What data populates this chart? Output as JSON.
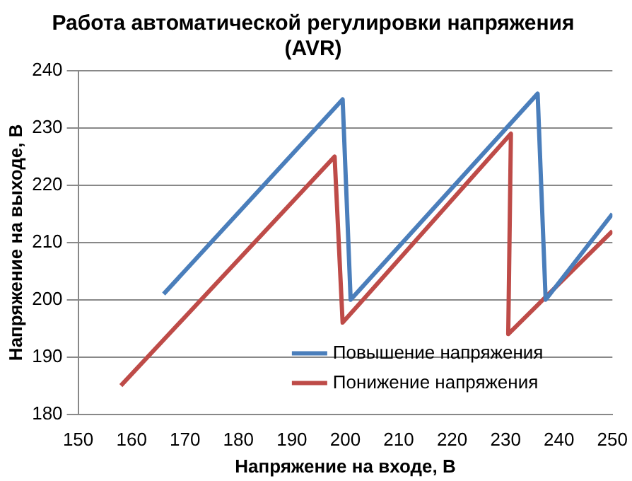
{
  "chart_data": {
    "type": "line",
    "title": "Работа автоматической регулировки напряжения (AVR)",
    "xlabel": "Напряжение на входе, В",
    "ylabel": "Напряжение на выходе, В",
    "series": [
      {
        "name": "Повышение напряжения",
        "color": "#4a7ebb",
        "x": [
          166,
          199.5,
          201,
          236,
          237.5,
          250
        ],
        "values": [
          201,
          235,
          200,
          236,
          200,
          215
        ]
      },
      {
        "name": "Понижение напряжения",
        "color": "#be4b48",
        "x": [
          158,
          198,
          199.5,
          231,
          230.5,
          237,
          250
        ],
        "values": [
          185,
          225,
          196,
          229,
          194,
          200,
          212
        ]
      }
    ],
    "xlim": [
      150,
      250
    ],
    "xticks": [
      150,
      160,
      170,
      180,
      190,
      200,
      210,
      220,
      230,
      240,
      250
    ],
    "ylim": [
      180,
      240
    ],
    "yticks": [
      180,
      190,
      200,
      210,
      220,
      230,
      240
    ],
    "grid": "y",
    "legend": "bottom",
    "marker": "none",
    "line_style": "solid"
  }
}
